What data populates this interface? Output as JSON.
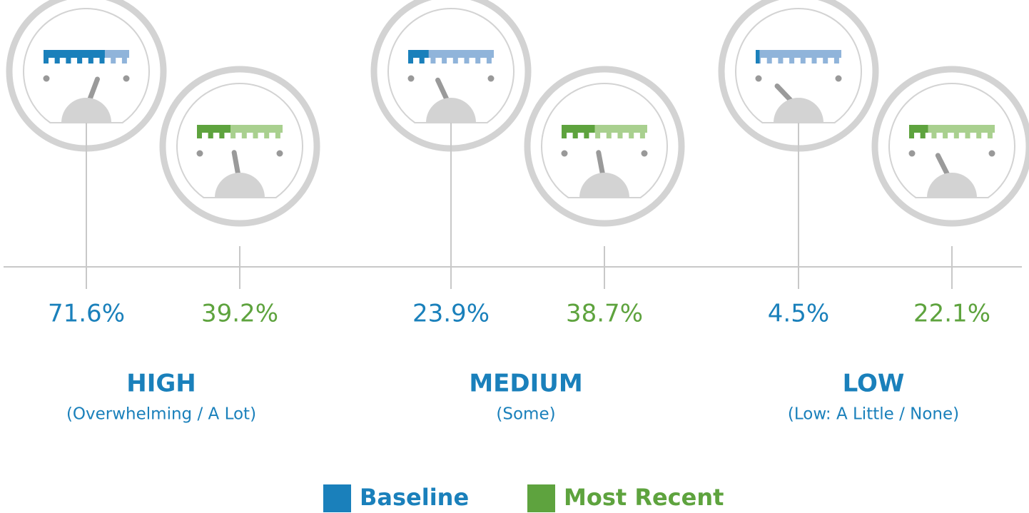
{
  "chart_data": {
    "type": "gauge",
    "categories": [
      "HIGH",
      "MEDIUM",
      "LOW"
    ],
    "subtitles": [
      "(Overwhelming / A Lot)",
      "(Some)",
      "(Low: A Little / None)"
    ],
    "ylim": [
      0,
      100
    ],
    "series": [
      {
        "name": "Baseline",
        "color": "#1a80bb",
        "light_color": "#90b4da",
        "values": [
          71.6,
          23.9,
          4.5
        ],
        "value_labels": [
          "71.6%",
          "23.9%",
          "4.5%"
        ]
      },
      {
        "name": "Most Recent",
        "color": "#5ea33e",
        "light_color": "#a9d08f",
        "values": [
          39.2,
          38.7,
          22.1
        ],
        "value_labels": [
          "39.2%",
          "38.7%",
          "22.1%"
        ]
      }
    ]
  }
}
